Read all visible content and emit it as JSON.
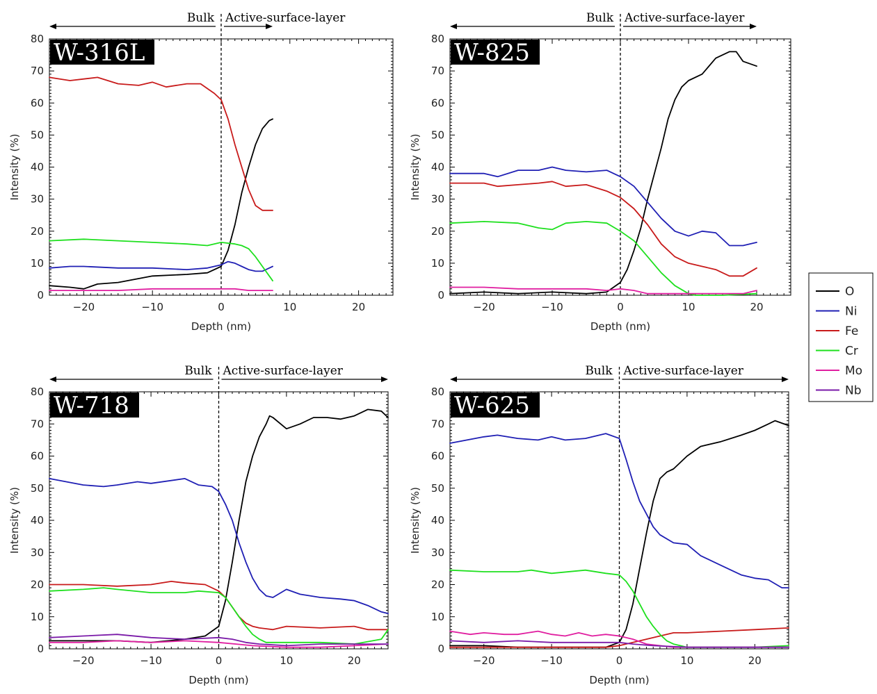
{
  "legend": {
    "entries": [
      {
        "name": "O",
        "color": "#000000"
      },
      {
        "name": "Ni",
        "color": "#1f1fb4"
      },
      {
        "name": "Fe",
        "color": "#c81a1a"
      },
      {
        "name": "Cr",
        "color": "#1ee01e"
      },
      {
        "name": "Mo",
        "color": "#e01ea0"
      },
      {
        "name": "Nb",
        "color": "#7a1aa8"
      }
    ]
  },
  "chart_data": [
    {
      "type": "line",
      "title": "W-316L",
      "xlabel": "Depth (nm)",
      "ylabel": "Intensity (%)",
      "xlim": [
        -25,
        25
      ],
      "ylim": [
        0,
        80
      ],
      "xticks": [
        -20,
        -10,
        0,
        10,
        20
      ],
      "yticks": [
        0,
        10,
        20,
        30,
        40,
        50,
        60,
        70,
        80
      ],
      "grid": false,
      "region_labels": {
        "left": "Bulk",
        "right": "Active-surface-layer"
      },
      "arrow_extent": [
        -25,
        7.5
      ],
      "divider_x": 0,
      "series": [
        {
          "name": "O",
          "x": [
            -25,
            -22,
            -20,
            -18,
            -15,
            -10,
            -5,
            -2,
            0,
            1,
            2,
            3,
            4,
            5,
            6,
            7,
            7.5
          ],
          "values": [
            3,
            2.5,
            2,
            3.5,
            4,
            6,
            6.5,
            7,
            9,
            14,
            22,
            32,
            40,
            47,
            52,
            54.5,
            55
          ]
        },
        {
          "name": "Ni",
          "x": [
            -25,
            -22,
            -20,
            -15,
            -10,
            -5,
            -2,
            0,
            1,
            2,
            3,
            4,
            5,
            6,
            7,
            7.5
          ],
          "values": [
            8.5,
            9,
            9,
            8.5,
            8.5,
            8,
            8.5,
            9.5,
            10.5,
            10,
            9,
            8,
            7.5,
            7.5,
            8.5,
            9
          ]
        },
        {
          "name": "Fe",
          "x": [
            -25,
            -22,
            -20,
            -18,
            -15,
            -12,
            -10,
            -8,
            -5,
            -3,
            -2,
            -1,
            0,
            1,
            2,
            3,
            4,
            5,
            6,
            7,
            7.5
          ],
          "values": [
            68,
            67,
            67.5,
            68,
            66,
            65.5,
            66.5,
            65,
            66,
            66,
            64.5,
            63,
            61,
            55,
            47,
            40,
            33,
            28,
            26.5,
            26.5,
            26.5
          ]
        },
        {
          "name": "Cr",
          "x": [
            -25,
            -20,
            -15,
            -10,
            -5,
            -2,
            0,
            2,
            3,
            4,
            5,
            6,
            7,
            7.5
          ],
          "values": [
            17,
            17.5,
            17,
            16.5,
            16,
            15.5,
            16.5,
            16,
            15.5,
            14.5,
            12,
            9,
            6,
            4.5
          ]
        },
        {
          "name": "Mo",
          "x": [
            -25,
            -20,
            -15,
            -10,
            -5,
            0,
            2,
            4,
            6,
            7.5
          ],
          "values": [
            1.5,
            1.5,
            1.5,
            2,
            2,
            2,
            2,
            1.5,
            1.5,
            1.5
          ]
        }
      ]
    },
    {
      "type": "line",
      "title": "W-825",
      "xlabel": "Depth (nm)",
      "ylabel": "Intensity (%)",
      "xlim": [
        -25,
        25
      ],
      "ylim": [
        0,
        80
      ],
      "xticks": [
        -20,
        -10,
        0,
        10,
        20
      ],
      "yticks": [
        0,
        10,
        20,
        30,
        40,
        50,
        60,
        70,
        80
      ],
      "grid": false,
      "region_labels": {
        "left": "Bulk",
        "right": "Active-surface-layer"
      },
      "arrow_extent": [
        -25,
        20
      ],
      "divider_x": 0,
      "series": [
        {
          "name": "O",
          "x": [
            -25,
            -20,
            -15,
            -10,
            -5,
            -2,
            0,
            1,
            2,
            3,
            4,
            5,
            6,
            7,
            8,
            9,
            10,
            12,
            14,
            16,
            17,
            18,
            20
          ],
          "values": [
            0.5,
            1,
            0.5,
            1,
            0.5,
            1,
            4,
            8,
            14,
            21,
            30,
            38,
            46,
            55,
            61,
            65,
            67,
            69,
            74,
            76,
            76,
            73,
            71.5
          ]
        },
        {
          "name": "Ni",
          "x": [
            -25,
            -20,
            -18,
            -15,
            -12,
            -10,
            -8,
            -5,
            -2,
            0,
            2,
            4,
            6,
            8,
            10,
            12,
            14,
            16,
            18,
            20
          ],
          "values": [
            38,
            38,
            37,
            39,
            39,
            40,
            39,
            38.5,
            39,
            37,
            34,
            29,
            24,
            20,
            18.5,
            20,
            19.5,
            15.5,
            15.5,
            16.5
          ]
        },
        {
          "name": "Fe",
          "x": [
            -25,
            -20,
            -18,
            -15,
            -12,
            -10,
            -8,
            -5,
            -2,
            0,
            2,
            4,
            6,
            8,
            10,
            12,
            14,
            16,
            18,
            20
          ],
          "values": [
            35,
            35,
            34,
            34.5,
            35,
            35.5,
            34,
            34.5,
            32.5,
            30.5,
            27,
            22,
            16,
            12,
            10,
            9,
            8,
            6,
            6,
            8.5
          ]
        },
        {
          "name": "Cr",
          "x": [
            -25,
            -20,
            -15,
            -12,
            -10,
            -8,
            -5,
            -2,
            0,
            2,
            4,
            6,
            8,
            10,
            11,
            12,
            15,
            20
          ],
          "values": [
            22.5,
            23,
            22.5,
            21,
            20.5,
            22.5,
            23,
            22.5,
            20,
            17,
            12,
            7,
            3,
            0.5,
            0,
            0,
            0,
            0.5
          ]
        },
        {
          "name": "Mo",
          "x": [
            -25,
            -20,
            -15,
            -10,
            -5,
            -2,
            0,
            2,
            4,
            6,
            10,
            15,
            18,
            20
          ],
          "values": [
            2.5,
            2.5,
            2,
            2,
            2,
            1.5,
            2,
            1.5,
            0.5,
            0.5,
            0.5,
            0.5,
            0.5,
            1.5
          ]
        }
      ]
    },
    {
      "type": "line",
      "title": "W-718",
      "xlabel": "Depth (nm)",
      "ylabel": "Intensity (%)",
      "xlim": [
        -25,
        25
      ],
      "ylim": [
        0,
        80
      ],
      "xticks": [
        -20,
        -10,
        0,
        10,
        20
      ],
      "yticks": [
        0,
        10,
        20,
        30,
        40,
        50,
        60,
        70,
        80
      ],
      "grid": false,
      "region_labels": {
        "left": "Bulk",
        "right": "Active-surface-layer"
      },
      "arrow_extent": [
        -25,
        25
      ],
      "divider_x": 0,
      "series": [
        {
          "name": "O",
          "x": [
            -25,
            -20,
            -15,
            -10,
            -5,
            -2,
            0,
            1,
            2,
            3,
            4,
            5,
            6,
            7,
            7.5,
            8,
            10,
            12,
            14,
            16,
            18,
            20,
            22,
            24,
            25
          ],
          "values": [
            2.5,
            2.5,
            2.5,
            2,
            3,
            4,
            7,
            15,
            27,
            40,
            52,
            60,
            66,
            70,
            72.5,
            72,
            68.5,
            70,
            72,
            72,
            71.5,
            72.5,
            74.5,
            74,
            72
          ]
        },
        {
          "name": "Ni",
          "x": [
            -25,
            -20,
            -17,
            -15,
            -12,
            -10,
            -5,
            -3,
            -1,
            0,
            1,
            2,
            3,
            4,
            5,
            6,
            7,
            8,
            10,
            12,
            15,
            18,
            20,
            22,
            24,
            25
          ],
          "values": [
            53,
            51,
            50.5,
            51,
            52,
            51.5,
            53,
            51,
            50.5,
            49,
            45,
            40,
            33,
            27,
            22,
            18.5,
            16.5,
            16,
            18.5,
            17,
            16,
            15.5,
            15,
            13.5,
            11.5,
            11
          ]
        },
        {
          "name": "Fe",
          "x": [
            -25,
            -20,
            -15,
            -10,
            -7,
            -5,
            -2,
            0,
            1,
            2,
            3,
            4,
            5,
            6,
            8,
            10,
            15,
            20,
            22,
            25
          ],
          "values": [
            20,
            20,
            19.5,
            20,
            21,
            20.5,
            20,
            18,
            16,
            13,
            10,
            8,
            7,
            6.5,
            6,
            7,
            6.5,
            7,
            6,
            6
          ]
        },
        {
          "name": "Cr",
          "x": [
            -25,
            -20,
            -17,
            -15,
            -10,
            -5,
            -3,
            0,
            1,
            2,
            3,
            4,
            5,
            6,
            7,
            8,
            10,
            15,
            20,
            24,
            25
          ],
          "values": [
            18,
            18.5,
            19,
            18.5,
            17.5,
            17.5,
            18,
            17.5,
            16,
            13,
            10,
            7,
            4.5,
            3,
            2,
            2,
            2,
            2,
            1.5,
            3,
            6
          ]
        },
        {
          "name": "Mo",
          "x": [
            -25,
            -20,
            -15,
            -10,
            -5,
            0,
            5,
            10,
            15,
            20,
            25
          ],
          "values": [
            2,
            2,
            2.5,
            2,
            2.5,
            2,
            1,
            0.5,
            0.5,
            1,
            1.5
          ]
        },
        {
          "name": "Nb",
          "x": [
            -25,
            -20,
            -15,
            -10,
            -5,
            0,
            2,
            4,
            6,
            10,
            15,
            20,
            25
          ],
          "values": [
            3.5,
            4,
            4.5,
            3.5,
            3,
            3.5,
            3,
            2,
            1.5,
            1,
            1.5,
            1.5,
            1.5
          ]
        }
      ]
    },
    {
      "type": "line",
      "title": "W-625",
      "xlabel": "Depth (nm)",
      "ylabel": "Intensity (%)",
      "xlim": [
        -25,
        25
      ],
      "ylim": [
        0,
        80
      ],
      "xticks": [
        -20,
        -10,
        0,
        10,
        20
      ],
      "yticks": [
        0,
        10,
        20,
        30,
        40,
        50,
        60,
        70,
        80
      ],
      "grid": false,
      "region_labels": {
        "left": "Bulk",
        "right": "Active-surface-layer"
      },
      "arrow_extent": [
        -25,
        25
      ],
      "divider_x": 0,
      "series": [
        {
          "name": "O",
          "x": [
            -25,
            -20,
            -15,
            -10,
            -5,
            -2,
            0,
            1,
            2,
            3,
            4,
            5,
            6,
            7,
            8,
            10,
            12,
            15,
            18,
            20,
            22,
            23,
            25
          ],
          "values": [
            1,
            1,
            0.5,
            0.5,
            0.5,
            0.5,
            2,
            6,
            14,
            25,
            36,
            46,
            53,
            55,
            56,
            60,
            63,
            64.5,
            66.5,
            68,
            70,
            71,
            69.5
          ]
        },
        {
          "name": "Ni",
          "x": [
            -25,
            -20,
            -18,
            -15,
            -12,
            -10,
            -8,
            -5,
            -2,
            0,
            1,
            2,
            3,
            4,
            5,
            6,
            8,
            10,
            12,
            15,
            18,
            20,
            22,
            24,
            25
          ],
          "values": [
            64,
            66,
            66.5,
            65.5,
            65,
            66,
            65,
            65.5,
            67,
            65.5,
            59,
            52,
            46,
            42,
            38,
            35.5,
            33,
            32.5,
            29,
            26,
            23,
            22,
            21.5,
            19,
            19
          ]
        },
        {
          "name": "Fe",
          "x": [
            -25,
            -20,
            -15,
            -10,
            -5,
            -2,
            0,
            2,
            4,
            6,
            8,
            10,
            15,
            20,
            25
          ],
          "values": [
            0.5,
            0.5,
            0.5,
            0.5,
            0.5,
            0.5,
            1,
            2,
            3,
            4,
            5,
            5,
            5.5,
            6,
            6.5
          ]
        },
        {
          "name": "Cr",
          "x": [
            -25,
            -20,
            -15,
            -13,
            -10,
            -5,
            -2,
            0,
            1,
            2,
            3,
            4,
            5,
            6,
            7,
            8,
            9,
            10,
            12,
            15,
            20,
            25
          ],
          "values": [
            24.5,
            24,
            24,
            24.5,
            23.5,
            24.5,
            23.5,
            23,
            21,
            18,
            14,
            10,
            7,
            4.5,
            2.5,
            1.5,
            1,
            0.5,
            0.5,
            0.5,
            0.5,
            1
          ]
        },
        {
          "name": "Mo",
          "x": [
            -25,
            -22,
            -20,
            -17,
            -15,
            -12,
            -10,
            -8,
            -6,
            -4,
            -2,
            0,
            2,
            4,
            6,
            8,
            10,
            15,
            20,
            25
          ],
          "values": [
            5.5,
            4.5,
            5,
            4.5,
            4.5,
            5.5,
            4.5,
            4,
            5,
            4,
            4.5,
            4,
            3,
            1.5,
            1,
            0.5,
            0.5,
            0.5,
            0.5,
            0.5
          ]
        },
        {
          "name": "Nb",
          "x": [
            -25,
            -20,
            -15,
            -10,
            -5,
            0,
            2,
            5,
            10,
            15,
            20,
            25
          ],
          "values": [
            2.5,
            2,
            2.5,
            2,
            2,
            2,
            1.5,
            1,
            0.5,
            0.5,
            0.5,
            0.5
          ]
        }
      ]
    }
  ]
}
